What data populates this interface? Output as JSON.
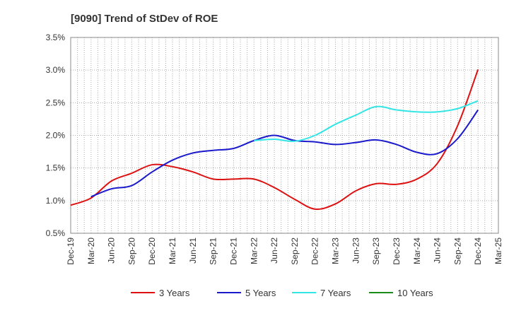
{
  "chart_data": {
    "type": "line",
    "title": "[9090]  Trend of StDev of ROE",
    "xlabel": "",
    "ylabel": "",
    "ylim": [
      0.5,
      3.5
    ],
    "y_ticks": [
      "0.5%",
      "1.0%",
      "1.5%",
      "2.0%",
      "2.5%",
      "3.0%",
      "3.5%"
    ],
    "y_tick_values": [
      0.5,
      1.0,
      1.5,
      2.0,
      2.5,
      3.0,
      3.5
    ],
    "categories": [
      "Dec-19",
      "Mar-20",
      "Jun-20",
      "Sep-20",
      "Dec-20",
      "Mar-21",
      "Jun-21",
      "Sep-21",
      "Dec-21",
      "Mar-22",
      "Jun-22",
      "Sep-22",
      "Dec-22",
      "Mar-23",
      "Jun-23",
      "Sep-23",
      "Dec-23",
      "Mar-24",
      "Jun-24",
      "Sep-24",
      "Dec-24",
      "Mar-25"
    ],
    "grid": true,
    "legend_position": "bottom",
    "series": [
      {
        "name": "3 Years",
        "color": "#dd1111",
        "values": [
          0.93,
          1.04,
          1.3,
          1.42,
          1.55,
          1.52,
          1.44,
          1.33,
          1.33,
          1.33,
          1.2,
          1.02,
          0.87,
          0.95,
          1.15,
          1.26,
          1.25,
          1.33,
          1.57,
          2.15,
          3.01,
          null
        ]
      },
      {
        "name": "5 Years",
        "color": "#1a1acc",
        "values": [
          null,
          1.06,
          1.18,
          1.23,
          1.44,
          1.62,
          1.73,
          1.77,
          1.8,
          1.92,
          2.0,
          1.92,
          1.9,
          1.86,
          1.89,
          1.93,
          1.86,
          1.74,
          1.72,
          1.95,
          2.39,
          null
        ]
      },
      {
        "name": "7 Years",
        "color": "#33e5e5",
        "values": [
          null,
          null,
          null,
          null,
          null,
          null,
          null,
          null,
          null,
          1.92,
          1.94,
          1.91,
          2.0,
          2.17,
          2.31,
          2.44,
          2.39,
          2.36,
          2.36,
          2.41,
          2.53,
          null
        ]
      },
      {
        "name": "10 Years",
        "color": "#1a8c1a",
        "values": [
          null,
          null,
          null,
          null,
          null,
          null,
          null,
          null,
          null,
          null,
          null,
          null,
          null,
          null,
          null,
          null,
          null,
          null,
          null,
          null,
          null,
          null
        ]
      }
    ]
  }
}
